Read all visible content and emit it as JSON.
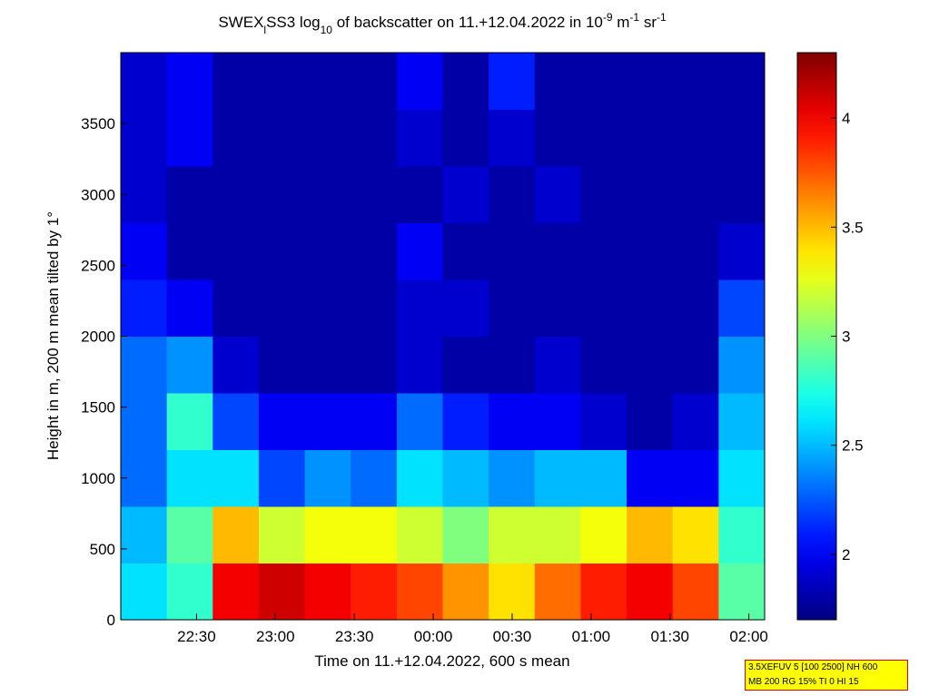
{
  "chart_data": {
    "type": "heatmap",
    "title": [
      {
        "text": "SWEX"
      },
      {
        "text": "l",
        "script": "sub"
      },
      {
        "text": "SS3 log"
      },
      {
        "text": "10",
        "script": "sub"
      },
      {
        "text": " of backscatter on 11.+12.04.2022 in 10"
      },
      {
        "text": "-9",
        "script": "sup"
      },
      {
        "text": " m"
      },
      {
        "text": "-1",
        "script": "sup"
      },
      {
        "text": " sr"
      },
      {
        "text": "-1",
        "script": "sup"
      }
    ],
    "xlabel": "Time on 11.+12.04.2022, 600 s mean",
    "ylabel": "Height in m, 200 m mean tilted by 1°",
    "xlim": [
      22.02,
      26.1
    ],
    "xticks": [
      {
        "value": 22.5,
        "label": "22:30"
      },
      {
        "value": 23,
        "label": "23:00"
      },
      {
        "value": 23.5,
        "label": "23:30"
      },
      {
        "value": 24,
        "label": "00:00"
      },
      {
        "value": 24.5,
        "label": "00:30"
      },
      {
        "value": 25,
        "label": "01:00"
      },
      {
        "value": 25.5,
        "label": "01:30"
      },
      {
        "value": 26,
        "label": "02:00"
      }
    ],
    "ylim": [
      0,
      4000
    ],
    "yticks": [
      0,
      500,
      1000,
      1500,
      2000,
      2500,
      3000,
      3500
    ],
    "colormap": "jet",
    "clim": [
      1.7,
      4.3
    ],
    "cticks": [
      2,
      2.5,
      3,
      3.5,
      4
    ],
    "z": [
      [
        2.6,
        2.8,
        4.0,
        4.1,
        4.0,
        3.9,
        3.8,
        3.6,
        3.4,
        3.7,
        3.9,
        4.0,
        3.8,
        2.9
      ],
      [
        2.5,
        2.9,
        3.5,
        3.2,
        3.3,
        3.3,
        3.2,
        3.0,
        3.2,
        3.2,
        3.3,
        3.5,
        3.4,
        2.8
      ],
      [
        2.3,
        2.6,
        2.6,
        2.2,
        2.4,
        2.3,
        2.6,
        2.5,
        2.4,
        2.5,
        2.5,
        2.0,
        2.0,
        2.6
      ],
      [
        2.3,
        2.8,
        2.2,
        2.0,
        2.0,
        2.0,
        2.3,
        2.1,
        2.0,
        2.0,
        1.9,
        1.8,
        1.9,
        2.5
      ],
      [
        2.3,
        2.4,
        1.9,
        1.8,
        1.8,
        1.8,
        1.9,
        1.8,
        1.8,
        1.9,
        1.8,
        1.8,
        1.8,
        2.4
      ],
      [
        2.1,
        2.0,
        1.8,
        1.8,
        1.8,
        1.8,
        1.9,
        1.9,
        1.8,
        1.8,
        1.8,
        1.8,
        1.8,
        2.2
      ],
      [
        2.0,
        1.8,
        1.8,
        1.8,
        1.8,
        1.8,
        2.0,
        1.8,
        1.8,
        1.8,
        1.8,
        1.8,
        1.8,
        1.9
      ],
      [
        1.9,
        1.8,
        1.8,
        1.8,
        1.8,
        1.8,
        1.8,
        1.9,
        1.8,
        1.9,
        1.8,
        1.8,
        1.8,
        1.8
      ],
      [
        1.9,
        2.0,
        1.8,
        1.8,
        1.8,
        1.8,
        1.9,
        1.8,
        1.9,
        1.8,
        1.8,
        1.8,
        1.8,
        1.8
      ],
      [
        1.9,
        2.0,
        1.8,
        1.8,
        1.8,
        1.8,
        2.0,
        1.8,
        2.1,
        1.8,
        1.8,
        1.8,
        1.8,
        1.8
      ]
    ],
    "info_box": [
      "3.5XEFUV 5 [100 2500] NH 600",
      "MB 200 RG 15% TI 0 HI 15"
    ]
  }
}
